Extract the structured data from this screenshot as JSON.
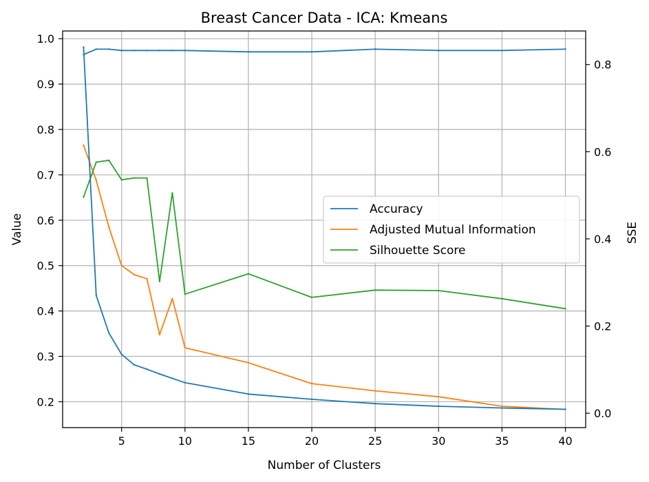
{
  "chart_data": {
    "type": "line",
    "title": "Breast Cancer Data - ICA: Kmeans",
    "xlabel": "Number of Clusters",
    "ylabel": "Value",
    "y2label": "SSE",
    "xlim": [
      0.35,
      41.6
    ],
    "ylim": [
      0.143,
      1.017
    ],
    "y2lim": [
      -0.033,
      0.877
    ],
    "x_ticks": [
      5,
      10,
      15,
      20,
      25,
      30,
      35,
      40
    ],
    "y_ticks": [
      0.2,
      0.3,
      0.4,
      0.5,
      0.6,
      0.7,
      0.8,
      0.9,
      1.0
    ],
    "y_tick_labels": [
      "0.2",
      "0.3",
      "0.4",
      "0.5",
      "0.6",
      "0.7",
      "0.8",
      "0.9",
      "1.0"
    ],
    "y2_ticks": [
      0.0,
      0.2,
      0.4,
      0.6,
      0.8
    ],
    "y2_tick_labels": [
      "0.0",
      "0.2",
      "0.4",
      "0.6",
      "0.8"
    ],
    "grid": true,
    "legend_position": "center-right",
    "series": [
      {
        "name": "Accuracy",
        "axis": "left",
        "color": "#1f77b4",
        "x": [
          2,
          3,
          4,
          5,
          6,
          7,
          8,
          9,
          10,
          15,
          20,
          25,
          30,
          35,
          40
        ],
        "y": [
          0.965,
          0.977,
          0.977,
          0.974,
          0.974,
          0.974,
          0.974,
          0.974,
          0.974,
          0.971,
          0.971,
          0.977,
          0.974,
          0.974,
          0.977
        ]
      },
      {
        "name": "Adjusted Mutual Information",
        "axis": "left",
        "color": "#ff7f0e",
        "x": [
          2,
          3,
          4,
          5,
          6,
          7,
          8,
          9,
          10,
          15,
          20,
          25,
          30,
          35,
          40
        ],
        "y": [
          0.765,
          0.688,
          0.585,
          0.5,
          0.48,
          0.471,
          0.348,
          0.427,
          0.319,
          0.286,
          0.24,
          0.224,
          0.211,
          0.19,
          0.183
        ]
      },
      {
        "name": "Silhouette Score",
        "axis": "left",
        "color": "#2ca02c",
        "x": [
          2,
          3,
          4,
          5,
          6,
          7,
          8,
          9,
          10,
          15,
          20,
          25,
          30,
          35,
          40
        ],
        "y": [
          0.651,
          0.728,
          0.732,
          0.689,
          0.693,
          0.693,
          0.465,
          0.66,
          0.437,
          0.482,
          0.43,
          0.446,
          0.445,
          0.427,
          0.405
        ]
      },
      {
        "axis": "right",
        "color": "#1f77b4",
        "x": [
          2,
          3,
          4,
          5,
          6,
          7,
          8,
          9,
          10,
          15,
          20,
          25,
          30,
          35,
          40
        ],
        "y": [
          0.84,
          0.27,
          0.184,
          0.135,
          0.111,
          0.101,
          0.09,
          0.08,
          0.07,
          0.044,
          0.032,
          0.022,
          0.016,
          0.012,
          0.009
        ]
      }
    ]
  }
}
